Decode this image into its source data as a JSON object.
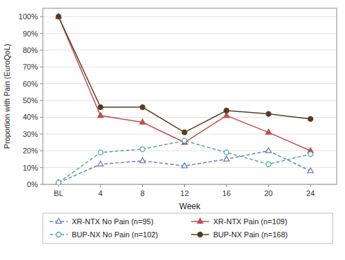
{
  "chart_data": {
    "type": "line",
    "xlabel": "Week",
    "ylabel": "Proportion with Pain (EuroQoL)",
    "x": [
      0,
      4,
      8,
      12,
      16,
      20,
      24
    ],
    "xlim": [
      -1.5,
      26.5
    ],
    "xticks": [
      {
        "value": 0,
        "label": "BL"
      },
      4,
      8,
      12,
      16,
      20,
      24
    ],
    "ylim": [
      0,
      1.05
    ],
    "yticks": [
      {
        "value": 0.0,
        "label": "0%"
      },
      {
        "value": 0.1,
        "label": "10%"
      },
      {
        "value": 0.2,
        "label": "20%"
      },
      {
        "value": 0.3,
        "label": "30%"
      },
      {
        "value": 0.4,
        "label": "40%"
      },
      {
        "value": 0.5,
        "label": "50%"
      },
      {
        "value": 0.6,
        "label": "60%"
      },
      {
        "value": 0.7,
        "label": "70%"
      },
      {
        "value": 0.8,
        "label": "80%"
      },
      {
        "value": 0.9,
        "label": "90%"
      },
      {
        "value": 1.0,
        "label": "100%"
      }
    ],
    "grid": "y",
    "legend": "bottom",
    "series": [
      {
        "name": "XR-NTX No Pain (n=95)",
        "color": "#6979C9",
        "line_style": "dashed",
        "marker": "open-triangle",
        "values": [
          0.01,
          0.12,
          0.14,
          0.11,
          0.15,
          0.2,
          0.08
        ]
      },
      {
        "name": "XR-NTX Pain (n=109)",
        "color": "#C0504D",
        "line_style": "solid",
        "marker": "triangle",
        "values": [
          1.0,
          0.41,
          0.37,
          0.25,
          0.41,
          0.31,
          0.2
        ]
      },
      {
        "name": "BUP-NX No Pain (n=102)",
        "color": "#4BAAA0",
        "line_style": "dashed",
        "marker": "open-circle",
        "values": [
          0.01,
          0.19,
          0.21,
          0.26,
          0.19,
          0.12,
          0.18
        ]
      },
      {
        "name": "BUP-NX Pain (n=168)",
        "color": "#5C3A1E",
        "line_style": "solid",
        "marker": "circle",
        "values": [
          1.0,
          0.46,
          0.46,
          0.31,
          0.44,
          0.42,
          0.39
        ]
      }
    ]
  }
}
